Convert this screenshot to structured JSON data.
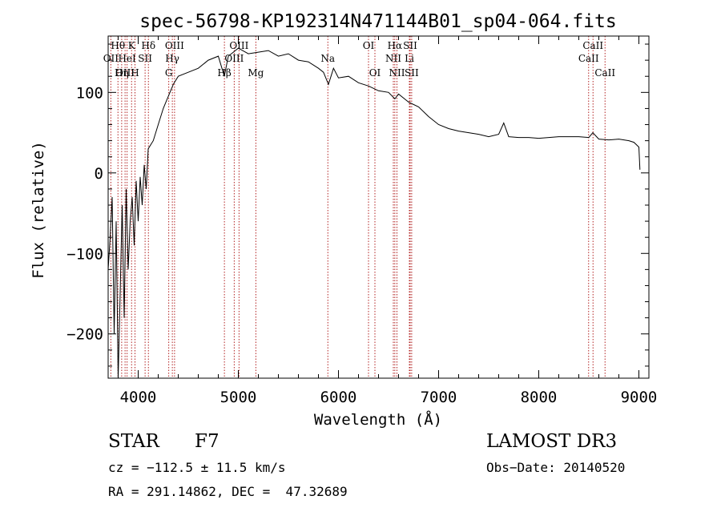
{
  "chart_data": {
    "type": "line",
    "title": "spec-56798-KP192314N471144B01_sp04-064.fits",
    "xlabel": "Wavelength (Å)",
    "ylabel": "Flux (relative)",
    "xlim": [
      3700,
      9100
    ],
    "ylim": [
      -255,
      170
    ],
    "xticks": [
      4000,
      5000,
      6000,
      7000,
      8000,
      9000
    ],
    "yticks": [
      -200,
      -100,
      0,
      100
    ],
    "spectrum": {
      "x": [
        3700,
        3720,
        3740,
        3760,
        3780,
        3800,
        3820,
        3840,
        3860,
        3880,
        3900,
        3920,
        3940,
        3960,
        3980,
        4000,
        4020,
        4040,
        4060,
        4080,
        4100,
        4150,
        4200,
        4250,
        4300,
        4350,
        4400,
        4500,
        4600,
        4700,
        4800,
        4860,
        4900,
        4950,
        5000,
        5100,
        5200,
        5300,
        5400,
        5500,
        5600,
        5700,
        5800,
        5850,
        5900,
        5950,
        6000,
        6100,
        6200,
        6300,
        6400,
        6500,
        6563,
        6600,
        6700,
        6800,
        6900,
        7000,
        7100,
        7200,
        7300,
        7400,
        7500,
        7600,
        7650,
        7700,
        7800,
        7900,
        8000,
        8100,
        8200,
        8300,
        8400,
        8500,
        8540,
        8600,
        8700,
        8800,
        8900,
        8950,
        9000,
        9010
      ],
      "y": [
        -120,
        -80,
        -30,
        -200,
        -60,
        -260,
        -150,
        -40,
        -180,
        -20,
        -120,
        -60,
        -30,
        -90,
        -10,
        -60,
        -5,
        -40,
        10,
        -20,
        30,
        40,
        60,
        80,
        95,
        110,
        120,
        125,
        130,
        140,
        145,
        120,
        145,
        150,
        155,
        148,
        150,
        152,
        145,
        148,
        140,
        138,
        130,
        125,
        110,
        130,
        118,
        120,
        112,
        108,
        102,
        100,
        92,
        98,
        88,
        82,
        70,
        60,
        55,
        52,
        50,
        48,
        45,
        48,
        62,
        45,
        44,
        44,
        43,
        44,
        45,
        45,
        45,
        44,
        50,
        42,
        41,
        42,
        40,
        38,
        32,
        4
      ]
    },
    "lines": [
      {
        "label": "Hθ",
        "x": 3798,
        "row": 1
      },
      {
        "label": "K",
        "x": 3934,
        "row": 1
      },
      {
        "label": "Hδ",
        "x": 4102,
        "row": 1
      },
      {
        "label": "OII",
        "x": 3727,
        "row": 2
      },
      {
        "label": "HeI",
        "x": 3889,
        "row": 2
      },
      {
        "label": "SII",
        "x": 4069,
        "row": 2
      },
      {
        "label": "OIII",
        "x": 3869,
        "row": 3
      },
      {
        "label": "Hη",
        "x": 3835,
        "row": 3
      },
      {
        "label": "H",
        "x": 3968,
        "row": 3
      },
      {
        "label": "OIII",
        "x": 4363,
        "row": 1
      },
      {
        "label": "Hγ",
        "x": 4341,
        "row": 2
      },
      {
        "label": "G",
        "x": 4305,
        "row": 3
      },
      {
        "label": "OIII",
        "x": 5007,
        "row": 1
      },
      {
        "label": "OIII",
        "x": 4959,
        "row": 2
      },
      {
        "label": "Hβ",
        "x": 4861,
        "row": 3
      },
      {
        "label": "Mg",
        "x": 5175,
        "row": 3
      },
      {
        "label": "Na",
        "x": 5894,
        "row": 2
      },
      {
        "label": "OI",
        "x": 6300,
        "row": 1
      },
      {
        "label": "OI",
        "x": 6364,
        "row": 3
      },
      {
        "label": "Hα",
        "x": 6563,
        "row": 1
      },
      {
        "label": "SII",
        "x": 6716,
        "row": 1
      },
      {
        "label": "NII",
        "x": 6548,
        "row": 2
      },
      {
        "label": "Li",
        "x": 6708,
        "row": 2
      },
      {
        "label": "NII",
        "x": 6584,
        "row": 3
      },
      {
        "label": "SII",
        "x": 6731,
        "row": 3
      },
      {
        "label": "CaII",
        "x": 8542,
        "row": 1
      },
      {
        "label": "CaII",
        "x": 8498,
        "row": 2
      },
      {
        "label": "CaII",
        "x": 8662,
        "row": 3
      }
    ]
  },
  "info": {
    "object_class": "STAR",
    "subclass": "F7",
    "survey": "LAMOST DR3",
    "cz": "cz = −112.5 ± 11.5 km/s",
    "obs_date": "Obs−Date: 20140520",
    "coords": "RA = 291.14862, DEC =  47.32689"
  }
}
